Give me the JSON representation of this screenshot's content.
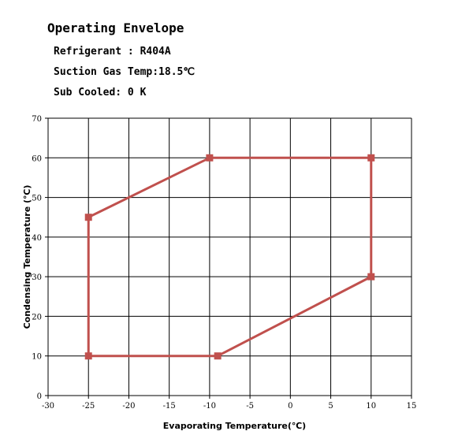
{
  "header": {
    "title": "Operating Envelope",
    "refrigerant": "Refrigerant : R404A",
    "suction": "Suction Gas Temp:18.5℃",
    "subcooled": "Sub Cooled: 0 K"
  },
  "chart_data": {
    "type": "line",
    "title": "Operating Envelope",
    "xlabel": "Evaporating Temperature(℃)",
    "ylabel": "Condensing Temperature (℃)",
    "xlim": [
      -30,
      15
    ],
    "ylim": [
      0,
      70
    ],
    "x_ticks": [
      -30,
      -25,
      -20,
      -15,
      -10,
      -5,
      0,
      5,
      10,
      15
    ],
    "y_ticks": [
      0,
      10,
      20,
      30,
      40,
      50,
      60,
      70
    ],
    "grid": true,
    "series": [
      {
        "x": [
          -25,
          -10,
          10,
          10,
          -9,
          -25,
          -25
        ],
        "y": [
          45,
          60,
          60,
          30,
          10,
          10,
          45
        ],
        "color": "#c0504d"
      }
    ]
  }
}
